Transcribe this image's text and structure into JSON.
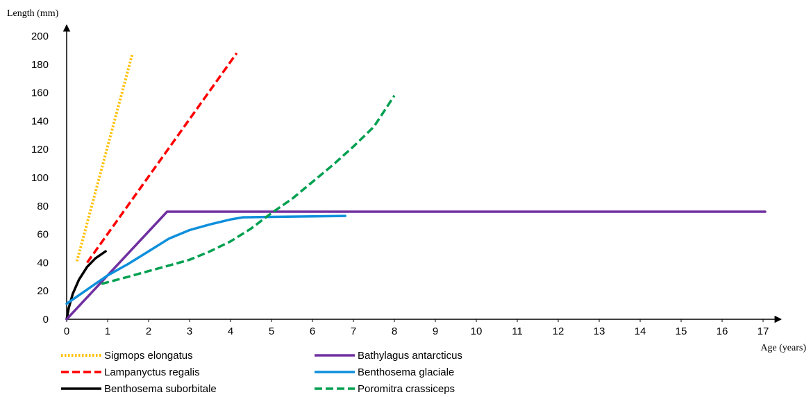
{
  "chart_data": {
    "type": "line",
    "xlabel": "Age (years)",
    "ylabel": "Length (mm)",
    "xlim": [
      0,
      17
    ],
    "ylim": [
      0,
      200
    ],
    "xticks": [
      0,
      1,
      2,
      3,
      4,
      5,
      6,
      7,
      8,
      9,
      10,
      11,
      12,
      13,
      14,
      15,
      16,
      17
    ],
    "yticks": [
      0,
      20,
      40,
      60,
      80,
      100,
      120,
      140,
      160,
      180,
      200
    ],
    "grid": false,
    "legend_position": "bottom",
    "series": [
      {
        "name": "Sigmops elongatus",
        "style": "dotted",
        "color": "#FFC000",
        "x": [
          0.25,
          1.6
        ],
        "y": [
          41,
          187
        ]
      },
      {
        "name": "Lampanyctus regalis",
        "style": "dashed",
        "color": "#FF0000",
        "x": [
          0.5,
          4.15
        ],
        "y": [
          40,
          188
        ]
      },
      {
        "name": "Benthosema suborbitale",
        "style": "solid",
        "color": "#000000",
        "x": [
          0,
          0.05,
          0.15,
          0.3,
          0.5,
          0.7,
          0.95
        ],
        "y": [
          0,
          8,
          18,
          28,
          37,
          43,
          48
        ]
      },
      {
        "name": "Bathylagus antarcticus",
        "style": "solid",
        "color": "#7030A0",
        "x": [
          0,
          2.45,
          17.05
        ],
        "y": [
          0,
          76,
          76
        ]
      },
      {
        "name": "Benthosema glaciale",
        "style": "solid",
        "color": "#0E8FDB",
        "x": [
          0,
          0.5,
          1,
          1.5,
          2,
          2.5,
          3,
          3.5,
          4,
          4.3,
          5,
          6,
          6.8
        ],
        "y": [
          11,
          21,
          31,
          39,
          48,
          57,
          63,
          67,
          70.5,
          72,
          72.3,
          72.7,
          73
        ]
      },
      {
        "name": "Poromitra crassiceps",
        "style": "dashed",
        "color": "#00A050",
        "x": [
          0.85,
          1.5,
          2,
          2.5,
          3,
          3.5,
          4,
          4.5,
          5,
          5.5,
          6,
          6.5,
          7,
          7.5,
          8
        ],
        "y": [
          25,
          30,
          34,
          38,
          42,
          48,
          55,
          64,
          75,
          85,
          97,
          109,
          122,
          136,
          158
        ]
      }
    ]
  }
}
